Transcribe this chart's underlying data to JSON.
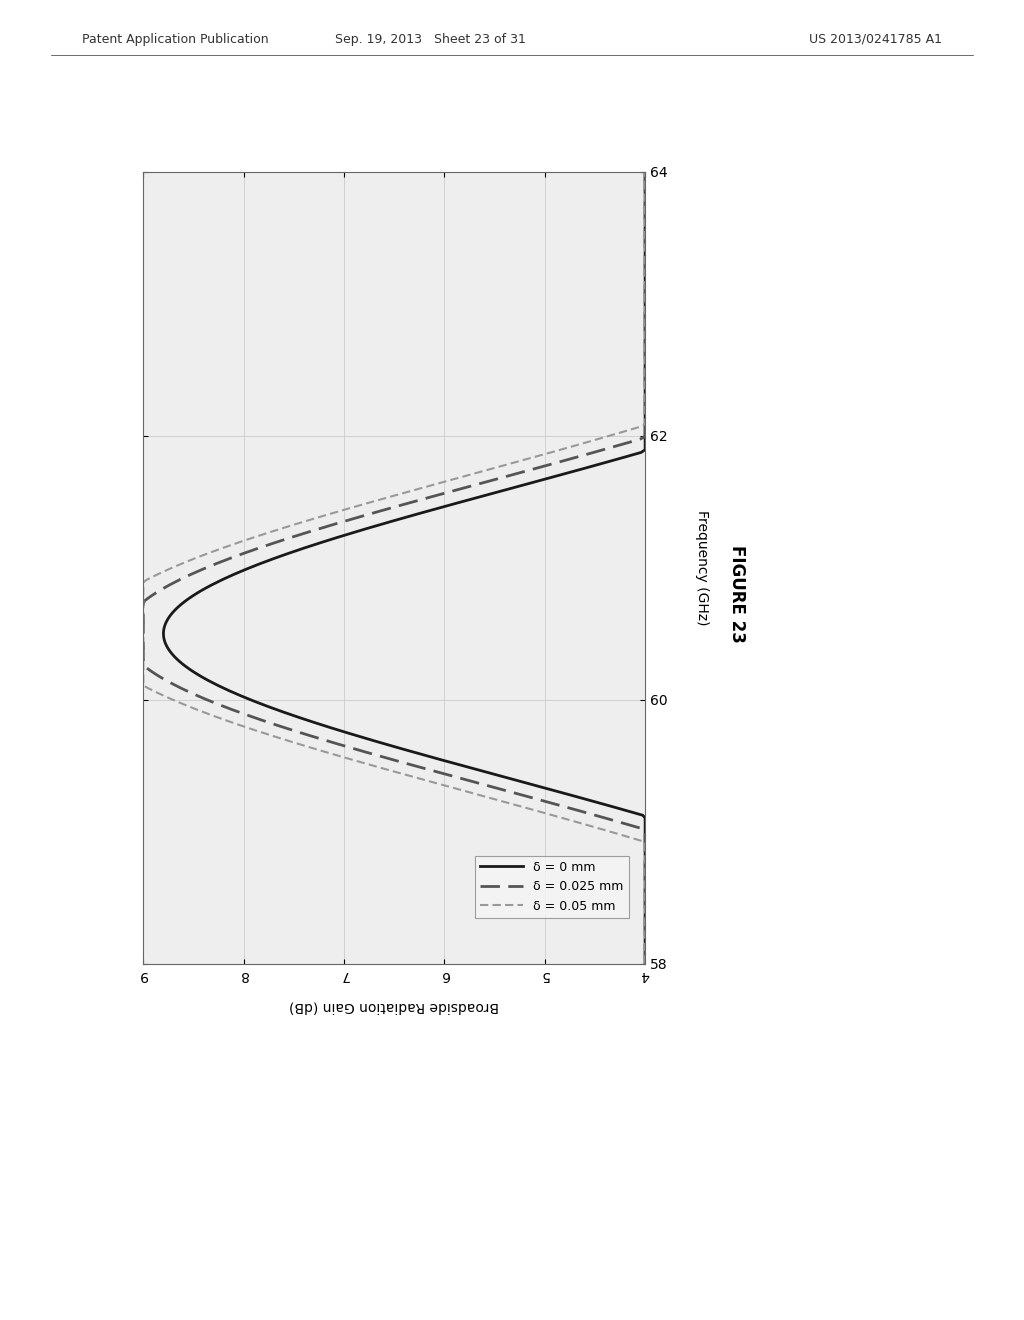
{
  "header_left": "Patent Application Publication",
  "header_center": "Sep. 19, 2013   Sheet 23 of 31",
  "header_right": "US 2013/0241785 A1",
  "figure_label": "FIGURE 23",
  "xlabel": "Broadside Radiation Gain (dB)",
  "ylabel": "Frequency (GHz)",
  "freq_ticks": [
    58,
    60,
    62,
    64
  ],
  "gain_ticks": [
    4,
    5,
    6,
    7,
    8,
    9
  ],
  "legend_labels": [
    "δ = 0 mm",
    "δ = 0.025 mm",
    "δ = 0.05 mm"
  ],
  "line_colors": [
    "#1a1a1a",
    "#555555",
    "#999999"
  ],
  "background_color": "#ffffff",
  "plot_bg": "#eeeeee",
  "grid_color": "#cccccc"
}
